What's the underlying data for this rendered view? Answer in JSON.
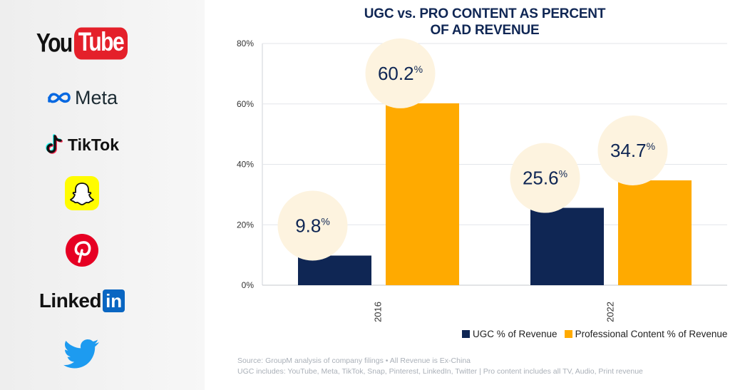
{
  "sidebar": {
    "logos": [
      {
        "name": "YouTube",
        "parts": [
          "You",
          "Tube"
        ]
      },
      {
        "name": "Meta",
        "text": "Meta"
      },
      {
        "name": "TikTok",
        "text": "TikTok"
      },
      {
        "name": "Snapchat"
      },
      {
        "name": "Pinterest"
      },
      {
        "name": "LinkedIn",
        "parts": [
          "Linked",
          "in"
        ]
      },
      {
        "name": "Twitter"
      }
    ]
  },
  "chart_data": {
    "type": "bar",
    "title_lines": [
      "UGC vs. PRO CONTENT AS PERCENT",
      "OF AD REVENUE"
    ],
    "categories": [
      "2016",
      "2022"
    ],
    "series": [
      {
        "name": "UGC % of Revenue",
        "color": "#0f2654",
        "values": [
          9.8,
          25.6
        ],
        "labels": [
          "9.8",
          "25.6"
        ]
      },
      {
        "name": "Professional Content % of Revenue",
        "color": "#ffaa00",
        "values": [
          60.2,
          34.7
        ],
        "labels": [
          "60.2",
          "34.7"
        ]
      }
    ],
    "label_suffix": "%",
    "ylim": [
      0,
      80
    ],
    "yticks": [
      "0%",
      "20%",
      "40%",
      "60%",
      "80%"
    ],
    "grid": true,
    "legend": "bottom-right"
  },
  "footer": {
    "source_line1": "Source: GroupM analysis of company filings  •  All Revenue is Ex-China",
    "source_line2": "UGC includes: YouTube, Meta, TikTok, Snap, Pinterest, LinkedIn, Twitter  |  Pro content includes all TV, Audio, Print revenue"
  },
  "colors": {
    "navy": "#0f2654",
    "orange": "#ffaa00",
    "bubble": "#fdf3df",
    "youtube_red": "#e4202a",
    "meta_blue": "#0668e1",
    "snap_yellow": "#fffc00",
    "pinterest_red": "#e60023",
    "linkedin_blue": "#0a66c2",
    "twitter_blue": "#1d9bf0"
  }
}
